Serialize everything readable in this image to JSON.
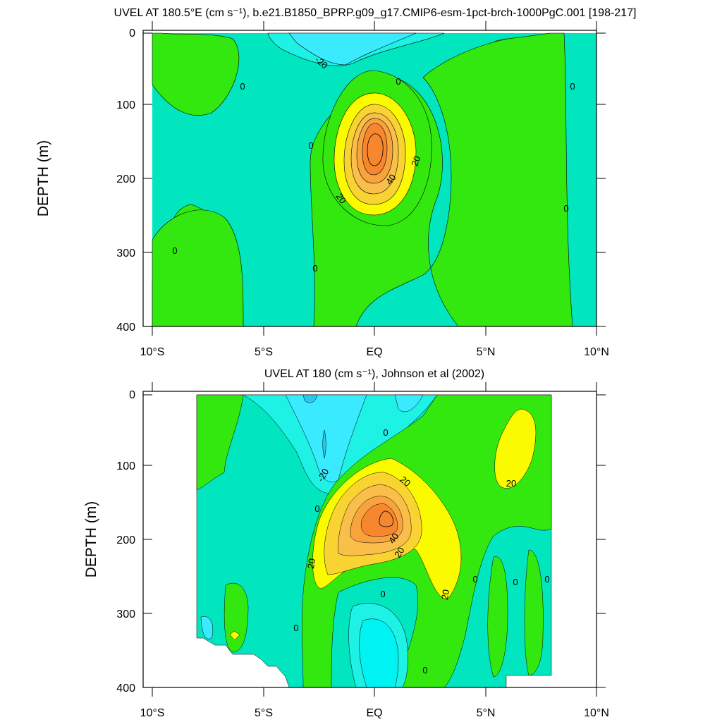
{
  "chart_data": [
    {
      "type": "contour",
      "title": "UVEL AT 180.5°E (cm s⁻¹), b.e21.B1850_BPRP.g09_g17.CMIP6-esm-1pct-brch-1000PgC.001 [198-217]",
      "ylabel": "DEPTH (m)",
      "xlim": [
        -10,
        10
      ],
      "ylim": [
        0,
        400
      ],
      "y_inverted": true,
      "x_ticks": [
        "10°S",
        "5°S",
        "EQ",
        "5°N",
        "10°N"
      ],
      "y_ticks": [
        "0",
        "100",
        "200",
        "300",
        "400"
      ],
      "contour_labels": [
        "-20",
        "0",
        "0",
        "0",
        "0",
        "20",
        "40",
        "20",
        "0",
        "0",
        "0"
      ],
      "core": {
        "lat": 0,
        "depth": 155,
        "max_value": 60
      },
      "fill_colors": {
        "-40": "#29C8F0",
        "-20": "#3AEAFE",
        "-10": "#1EF2E5",
        "0": "#01E6BF",
        "10": "#33E80E",
        "20": "#FAFB00",
        "30": "#F9D332",
        "40": "#FABF4A",
        "50": "#F9A33E",
        "60": "#F7872E"
      }
    },
    {
      "type": "contour",
      "title": "UVEL AT 180 (cm s⁻¹), Johnson et al (2002)",
      "ylabel": "DEPTH (m)",
      "xlim": [
        -10,
        10
      ],
      "ylim": [
        0,
        400
      ],
      "y_inverted": true,
      "x_ticks": [
        "10°S",
        "5°S",
        "EQ",
        "5°N",
        "10°N"
      ],
      "y_ticks": [
        "0",
        "100",
        "200",
        "300",
        "400"
      ],
      "contour_labels": [
        "-20",
        "0",
        "20",
        "20",
        "40",
        "20",
        "20",
        "20",
        "0",
        "0",
        "0",
        "0",
        "0",
        "0",
        "0"
      ],
      "core": {
        "lat": 0.5,
        "depth": 170,
        "max_value": 60
      }
    }
  ]
}
